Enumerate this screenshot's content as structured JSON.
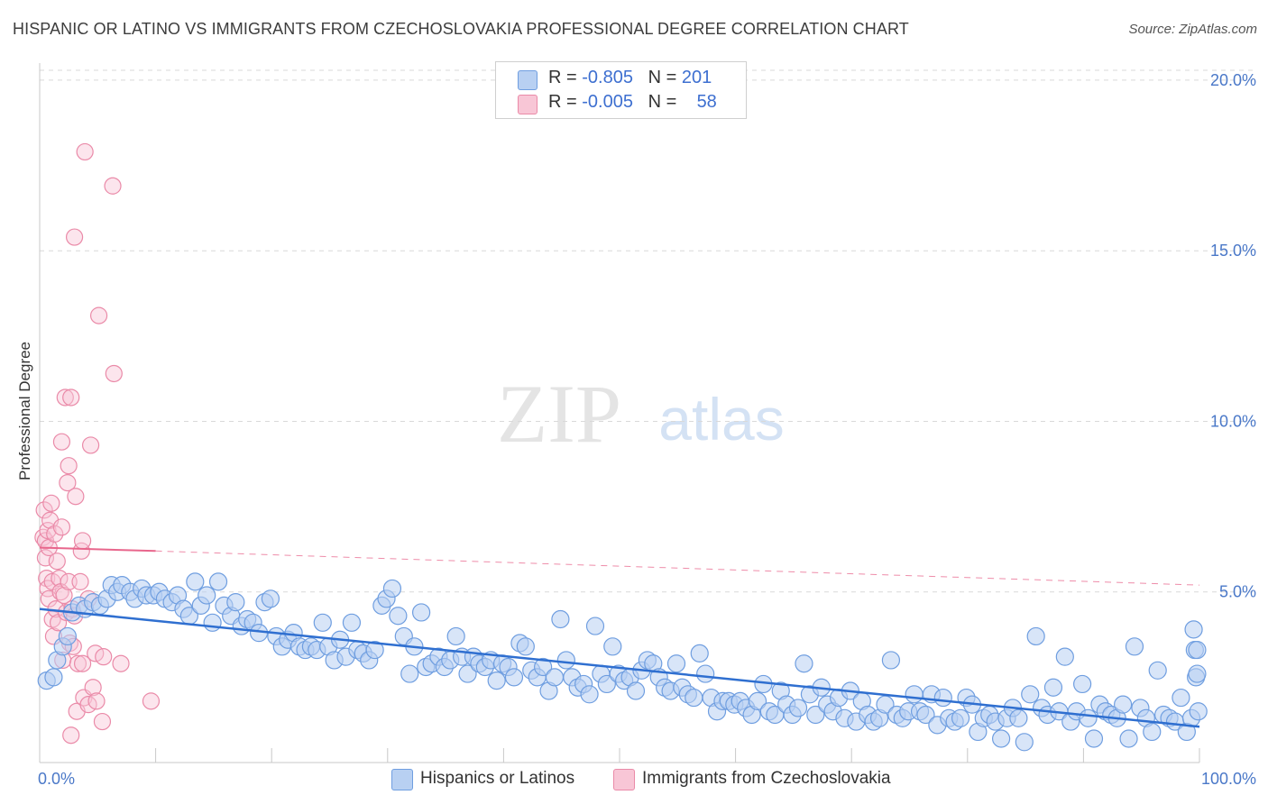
{
  "title": "HISPANIC OR LATINO VS IMMIGRANTS FROM CZECHOSLOVAKIA PROFESSIONAL DEGREE CORRELATION CHART",
  "source": "Source: ZipAtlas.com",
  "watermark": {
    "zip": "ZIP",
    "atlas": "atlas"
  },
  "legend": {
    "rows": [
      {
        "r_label": "R = ",
        "r_value": "-0.805",
        "n_label": "N = ",
        "n_value": "201"
      },
      {
        "r_label": "R = ",
        "r_value": "-0.005",
        "n_label": "N = ",
        "n_value": "58"
      }
    ]
  },
  "colors": {
    "blue_fill": "#b8d0f2",
    "blue_edge": "#6f9ee0",
    "blue_line": "#2f6fd0",
    "pink_fill": "#f8c6d6",
    "pink_edge": "#ea8aa8",
    "pink_line": "#e8668c",
    "grid": "#d9d9d9",
    "axis_text": "#4a78c8"
  },
  "chart_data": {
    "type": "scatter",
    "title": "HISPANIC OR LATINO VS IMMIGRANTS FROM CZECHOSLOVAKIA PROFESSIONAL DEGREE CORRELATION CHART",
    "xlabel": "",
    "ylabel": "Professional Degree",
    "xlim": [
      0,
      100
    ],
    "ylim": [
      0,
      20.5
    ],
    "x_tick_labels": [
      "0.0%",
      "100.0%"
    ],
    "y_ticks": [
      5,
      10,
      15,
      20
    ],
    "y_tick_labels": [
      "5.0%",
      "10.0%",
      "15.0%",
      "20.0%"
    ],
    "grid": true,
    "legend_position": "top-center",
    "series": [
      {
        "name": "Hispanics or Latinos",
        "color": "#6f9ee0",
        "trend": {
          "x": [
            0,
            100
          ],
          "y": [
            4.5,
            1.05
          ],
          "style": "solid"
        },
        "points": [
          [
            0.6,
            2.4
          ],
          [
            1.2,
            2.5
          ],
          [
            1.5,
            3.0
          ],
          [
            2.0,
            3.4
          ],
          [
            2.4,
            3.7
          ],
          [
            2.8,
            4.4
          ],
          [
            3.4,
            4.6
          ],
          [
            3.9,
            4.5
          ],
          [
            4.6,
            4.7
          ],
          [
            5.2,
            4.6
          ],
          [
            5.8,
            4.8
          ],
          [
            6.2,
            5.2
          ],
          [
            6.7,
            5.0
          ],
          [
            7.1,
            5.2
          ],
          [
            7.8,
            5.0
          ],
          [
            8.2,
            4.8
          ],
          [
            8.8,
            5.1
          ],
          [
            9.2,
            4.9
          ],
          [
            9.8,
            4.9
          ],
          [
            10.3,
            5.0
          ],
          [
            10.8,
            4.8
          ],
          [
            11.4,
            4.7
          ],
          [
            11.9,
            4.9
          ],
          [
            12.4,
            4.5
          ],
          [
            12.9,
            4.3
          ],
          [
            13.4,
            5.3
          ],
          [
            13.9,
            4.6
          ],
          [
            14.4,
            4.9
          ],
          [
            14.9,
            4.1
          ],
          [
            15.4,
            5.3
          ],
          [
            15.9,
            4.6
          ],
          [
            16.5,
            4.3
          ],
          [
            16.9,
            4.7
          ],
          [
            17.4,
            4.0
          ],
          [
            17.9,
            4.2
          ],
          [
            18.4,
            4.1
          ],
          [
            18.9,
            3.8
          ],
          [
            19.4,
            4.7
          ],
          [
            19.9,
            4.8
          ],
          [
            20.4,
            3.7
          ],
          [
            20.9,
            3.4
          ],
          [
            21.4,
            3.6
          ],
          [
            21.9,
            3.8
          ],
          [
            22.4,
            3.4
          ],
          [
            22.9,
            3.3
          ],
          [
            23.4,
            3.4
          ],
          [
            23.9,
            3.3
          ],
          [
            24.4,
            4.1
          ],
          [
            24.9,
            3.4
          ],
          [
            25.4,
            3.0
          ],
          [
            25.9,
            3.6
          ],
          [
            26.4,
            3.1
          ],
          [
            26.9,
            4.1
          ],
          [
            27.4,
            3.3
          ],
          [
            27.9,
            3.2
          ],
          [
            28.4,
            3.0
          ],
          [
            28.9,
            3.3
          ],
          [
            29.5,
            4.6
          ],
          [
            29.9,
            4.8
          ],
          [
            30.4,
            5.1
          ],
          [
            30.9,
            4.3
          ],
          [
            31.4,
            3.7
          ],
          [
            31.9,
            2.6
          ],
          [
            32.3,
            3.4
          ],
          [
            32.9,
            4.4
          ],
          [
            33.3,
            2.8
          ],
          [
            33.8,
            2.9
          ],
          [
            34.4,
            3.1
          ],
          [
            34.9,
            2.8
          ],
          [
            35.4,
            3.0
          ],
          [
            35.9,
            3.7
          ],
          [
            36.4,
            3.1
          ],
          [
            36.9,
            2.6
          ],
          [
            37.4,
            3.1
          ],
          [
            37.9,
            2.9
          ],
          [
            38.4,
            2.8
          ],
          [
            38.9,
            3.0
          ],
          [
            39.4,
            2.4
          ],
          [
            39.9,
            2.9
          ],
          [
            40.4,
            2.8
          ],
          [
            40.9,
            2.5
          ],
          [
            41.4,
            3.5
          ],
          [
            41.9,
            3.4
          ],
          [
            42.4,
            2.7
          ],
          [
            42.9,
            2.5
          ],
          [
            43.4,
            2.8
          ],
          [
            43.9,
            2.1
          ],
          [
            44.4,
            2.5
          ],
          [
            44.9,
            4.2
          ],
          [
            45.4,
            3.0
          ],
          [
            45.9,
            2.5
          ],
          [
            46.4,
            2.2
          ],
          [
            46.9,
            2.3
          ],
          [
            47.4,
            2.0
          ],
          [
            47.9,
            4.0
          ],
          [
            48.4,
            2.6
          ],
          [
            48.9,
            2.3
          ],
          [
            49.4,
            3.4
          ],
          [
            49.9,
            2.6
          ],
          [
            50.4,
            2.4
          ],
          [
            50.9,
            2.5
          ],
          [
            51.4,
            2.1
          ],
          [
            51.9,
            2.7
          ],
          [
            52.4,
            3.0
          ],
          [
            52.9,
            2.9
          ],
          [
            53.4,
            2.5
          ],
          [
            53.9,
            2.2
          ],
          [
            54.4,
            2.1
          ],
          [
            54.9,
            2.9
          ],
          [
            55.4,
            2.2
          ],
          [
            55.9,
            2.0
          ],
          [
            56.4,
            1.9
          ],
          [
            56.9,
            3.2
          ],
          [
            57.4,
            2.6
          ],
          [
            57.9,
            1.9
          ],
          [
            58.4,
            1.5
          ],
          [
            58.9,
            1.8
          ],
          [
            59.4,
            1.8
          ],
          [
            59.9,
            1.7
          ],
          [
            60.4,
            1.8
          ],
          [
            60.9,
            1.6
          ],
          [
            61.4,
            1.4
          ],
          [
            61.9,
            1.8
          ],
          [
            62.4,
            2.3
          ],
          [
            62.9,
            1.5
          ],
          [
            63.4,
            1.4
          ],
          [
            63.9,
            2.1
          ],
          [
            64.4,
            1.7
          ],
          [
            64.9,
            1.4
          ],
          [
            65.4,
            1.6
          ],
          [
            65.9,
            2.9
          ],
          [
            66.4,
            2.0
          ],
          [
            66.9,
            1.4
          ],
          [
            67.4,
            2.2
          ],
          [
            67.9,
            1.7
          ],
          [
            68.4,
            1.5
          ],
          [
            68.9,
            1.9
          ],
          [
            69.4,
            1.3
          ],
          [
            69.9,
            2.1
          ],
          [
            70.4,
            1.2
          ],
          [
            70.9,
            1.8
          ],
          [
            71.4,
            1.4
          ],
          [
            71.9,
            1.2
          ],
          [
            72.4,
            1.3
          ],
          [
            72.9,
            1.7
          ],
          [
            73.4,
            3.0
          ],
          [
            73.9,
            1.4
          ],
          [
            74.4,
            1.3
          ],
          [
            74.9,
            1.5
          ],
          [
            75.4,
            2.0
          ],
          [
            75.9,
            1.5
          ],
          [
            76.4,
            1.4
          ],
          [
            76.9,
            2.0
          ],
          [
            77.4,
            1.1
          ],
          [
            77.9,
            1.9
          ],
          [
            78.4,
            1.3
          ],
          [
            78.9,
            1.2
          ],
          [
            79.4,
            1.3
          ],
          [
            79.9,
            1.9
          ],
          [
            80.4,
            1.7
          ],
          [
            80.9,
            0.9
          ],
          [
            81.4,
            1.3
          ],
          [
            81.9,
            1.4
          ],
          [
            82.4,
            1.2
          ],
          [
            82.9,
            0.7
          ],
          [
            83.4,
            1.3
          ],
          [
            83.9,
            1.6
          ],
          [
            84.4,
            1.3
          ],
          [
            84.9,
            0.6
          ],
          [
            85.4,
            2.0
          ],
          [
            85.9,
            3.7
          ],
          [
            86.4,
            1.6
          ],
          [
            86.9,
            1.4
          ],
          [
            87.4,
            2.2
          ],
          [
            87.9,
            1.5
          ],
          [
            88.4,
            3.1
          ],
          [
            88.9,
            1.2
          ],
          [
            89.4,
            1.5
          ],
          [
            89.9,
            2.3
          ],
          [
            90.4,
            1.3
          ],
          [
            90.9,
            0.7
          ],
          [
            91.4,
            1.7
          ],
          [
            91.9,
            1.5
          ],
          [
            92.4,
            1.4
          ],
          [
            92.9,
            1.3
          ],
          [
            93.4,
            1.7
          ],
          [
            93.9,
            0.7
          ],
          [
            94.4,
            3.4
          ],
          [
            94.9,
            1.6
          ],
          [
            95.4,
            1.3
          ],
          [
            95.9,
            0.9
          ],
          [
            96.4,
            2.7
          ],
          [
            96.9,
            1.4
          ],
          [
            97.4,
            1.3
          ],
          [
            97.9,
            1.2
          ],
          [
            98.4,
            1.9
          ],
          [
            98.9,
            0.9
          ],
          [
            99.3,
            1.3
          ],
          [
            99.5,
            3.9
          ],
          [
            99.6,
            3.3
          ],
          [
            99.7,
            2.5
          ],
          [
            99.8,
            2.6
          ],
          [
            99.8,
            3.3
          ],
          [
            99.9,
            1.5
          ]
        ]
      },
      {
        "name": "Immigrants from Czechoslovakia",
        "color": "#ea8aa8",
        "trend": {
          "x": [
            0,
            10
          ],
          "y": [
            6.3,
            6.2
          ],
          "style": "solid",
          "extended": {
            "x": [
              10,
              100
            ],
            "y": [
              6.2,
              5.2
            ],
            "style": "dashed"
          }
        },
        "points": [
          [
            0.3,
            6.6
          ],
          [
            0.4,
            7.4
          ],
          [
            0.5,
            6.5
          ],
          [
            0.5,
            6.0
          ],
          [
            0.6,
            5.4
          ],
          [
            0.7,
            6.8
          ],
          [
            0.7,
            5.1
          ],
          [
            0.8,
            4.8
          ],
          [
            0.8,
            6.3
          ],
          [
            0.9,
            7.1
          ],
          [
            1.0,
            7.6
          ],
          [
            1.1,
            5.3
          ],
          [
            1.1,
            4.2
          ],
          [
            1.2,
            3.7
          ],
          [
            1.3,
            6.7
          ],
          [
            1.4,
            4.5
          ],
          [
            1.5,
            5.9
          ],
          [
            1.6,
            4.1
          ],
          [
            1.7,
            5.4
          ],
          [
            1.8,
            5.0
          ],
          [
            1.9,
            6.9
          ],
          [
            1.9,
            9.4
          ],
          [
            2.0,
            3.0
          ],
          [
            2.1,
            4.9
          ],
          [
            2.2,
            10.7
          ],
          [
            2.3,
            4.4
          ],
          [
            2.4,
            8.2
          ],
          [
            2.5,
            8.7
          ],
          [
            2.5,
            5.3
          ],
          [
            2.6,
            3.5
          ],
          [
            2.7,
            0.8
          ],
          [
            2.7,
            10.7
          ],
          [
            2.8,
            4.5
          ],
          [
            2.9,
            3.4
          ],
          [
            3.0,
            4.3
          ],
          [
            3.0,
            15.4
          ],
          [
            3.1,
            7.8
          ],
          [
            3.2,
            1.5
          ],
          [
            3.3,
            2.9
          ],
          [
            3.5,
            5.3
          ],
          [
            3.6,
            6.2
          ],
          [
            3.7,
            2.9
          ],
          [
            3.7,
            6.5
          ],
          [
            3.8,
            1.9
          ],
          [
            3.9,
            17.9
          ],
          [
            4.2,
            1.7
          ],
          [
            4.2,
            4.8
          ],
          [
            4.4,
            9.3
          ],
          [
            4.6,
            2.2
          ],
          [
            4.8,
            3.2
          ],
          [
            4.9,
            1.8
          ],
          [
            5.1,
            13.1
          ],
          [
            5.4,
            1.2
          ],
          [
            5.5,
            3.1
          ],
          [
            6.3,
            16.9
          ],
          [
            6.4,
            11.4
          ],
          [
            7.0,
            2.9
          ],
          [
            9.6,
            1.8
          ]
        ]
      }
    ]
  },
  "bottom_legend": {
    "items": [
      {
        "label": "Hispanics or Latinos"
      },
      {
        "label": "Immigrants from Czechoslovakia"
      }
    ]
  }
}
